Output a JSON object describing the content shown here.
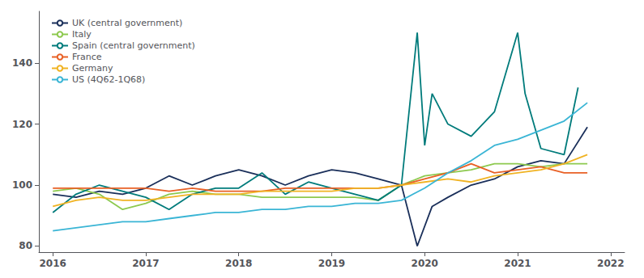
{
  "chart_data": {
    "type": "line",
    "series": [
      {
        "name": "UK (central government)",
        "color": "#1a2f5a",
        "x": [
          2016.0,
          2016.25,
          2016.5,
          2016.75,
          2017.0,
          2017.25,
          2017.5,
          2017.75,
          2018.0,
          2018.25,
          2018.5,
          2018.75,
          2019.0,
          2019.25,
          2019.5,
          2019.75,
          2019.92,
          2020.08,
          2020.25,
          2020.5,
          2020.75,
          2021.0,
          2021.25,
          2021.5,
          2021.75
        ],
        "values": [
          97,
          96,
          98,
          97,
          99,
          103,
          100,
          103,
          105,
          103,
          100,
          103,
          105,
          104,
          102,
          100,
          80,
          93,
          96,
          100,
          102,
          106,
          108,
          107,
          119
        ]
      },
      {
        "name": "Italy",
        "color": "#8dc94e",
        "x": [
          2016.0,
          2016.25,
          2016.5,
          2016.75,
          2017.0,
          2017.25,
          2017.5,
          2017.75,
          2018.0,
          2018.25,
          2018.5,
          2018.75,
          2019.0,
          2019.25,
          2019.5,
          2019.75,
          2020.0,
          2020.25,
          2020.5,
          2020.75,
          2021.0,
          2021.25,
          2021.5,
          2021.75
        ],
        "values": [
          98,
          99,
          97,
          92,
          94,
          97,
          98,
          97,
          97,
          96,
          96,
          96,
          96,
          96,
          95,
          100,
          103,
          104,
          105,
          107,
          107,
          106,
          107,
          107
        ]
      },
      {
        "name": "Spain (central government)",
        "color": "#007b7b",
        "x": [
          2016.0,
          2016.25,
          2016.5,
          2016.75,
          2017.0,
          2017.25,
          2017.5,
          2017.75,
          2018.0,
          2018.25,
          2018.5,
          2018.75,
          2019.0,
          2019.25,
          2019.5,
          2019.75,
          2019.92,
          2020.0,
          2020.08,
          2020.25,
          2020.5,
          2020.75,
          2021.0,
          2021.08,
          2021.25,
          2021.5,
          2021.65
        ],
        "values": [
          91,
          97,
          100,
          98,
          96,
          92,
          97,
          99,
          99,
          104,
          97,
          101,
          99,
          97,
          95,
          100,
          150,
          113,
          130,
          120,
          116,
          124,
          150,
          130,
          112,
          110,
          132
        ]
      },
      {
        "name": "France",
        "color": "#e86025",
        "x": [
          2016.0,
          2016.25,
          2016.5,
          2016.75,
          2017.0,
          2017.25,
          2017.5,
          2017.75,
          2018.0,
          2018.25,
          2018.5,
          2018.75,
          2019.0,
          2019.25,
          2019.5,
          2019.75,
          2020.0,
          2020.25,
          2020.5,
          2020.75,
          2021.0,
          2021.25,
          2021.5,
          2021.75
        ],
        "values": [
          99,
          99,
          99,
          99,
          99,
          98,
          99,
          98,
          98,
          98,
          99,
          99,
          99,
          99,
          99,
          100,
          102,
          104,
          107,
          104,
          105,
          106,
          104,
          104
        ]
      },
      {
        "name": "Germany",
        "color": "#f0b323",
        "x": [
          2016.0,
          2016.25,
          2016.5,
          2016.75,
          2017.0,
          2017.25,
          2017.5,
          2017.75,
          2018.0,
          2018.25,
          2018.5,
          2018.75,
          2019.0,
          2019.25,
          2019.5,
          2019.75,
          2020.0,
          2020.25,
          2020.5,
          2020.75,
          2021.0,
          2021.25,
          2021.5,
          2021.75
        ],
        "values": [
          93,
          95,
          96,
          95,
          95,
          96,
          97,
          97,
          97,
          98,
          98,
          98,
          98,
          99,
          99,
          100,
          101,
          102,
          101,
          103,
          104,
          105,
          107,
          110
        ]
      },
      {
        "name": "US (4Q62-1Q68)",
        "color": "#3ab5d5",
        "x": [
          2016.0,
          2016.25,
          2016.5,
          2016.75,
          2017.0,
          2017.25,
          2017.5,
          2017.75,
          2018.0,
          2018.25,
          2018.5,
          2018.75,
          2019.0,
          2019.25,
          2019.5,
          2019.75,
          2020.0,
          2020.25,
          2020.5,
          2020.75,
          2021.0,
          2021.25,
          2021.5,
          2021.75
        ],
        "values": [
          85,
          86,
          87,
          88,
          88,
          89,
          90,
          91,
          91,
          92,
          92,
          93,
          93,
          94,
          94,
          95,
          99,
          104,
          108,
          113,
          115,
          118,
          121,
          127
        ]
      }
    ],
    "xlim": [
      2015.85,
      2022.15
    ],
    "ylim": [
      78,
      157
    ],
    "xticks": [
      2016,
      2017,
      2018,
      2019,
      2020,
      2021,
      2022
    ],
    "yticks": [
      80,
      100,
      120,
      140
    ],
    "grid": false,
    "legend": "upper left"
  }
}
